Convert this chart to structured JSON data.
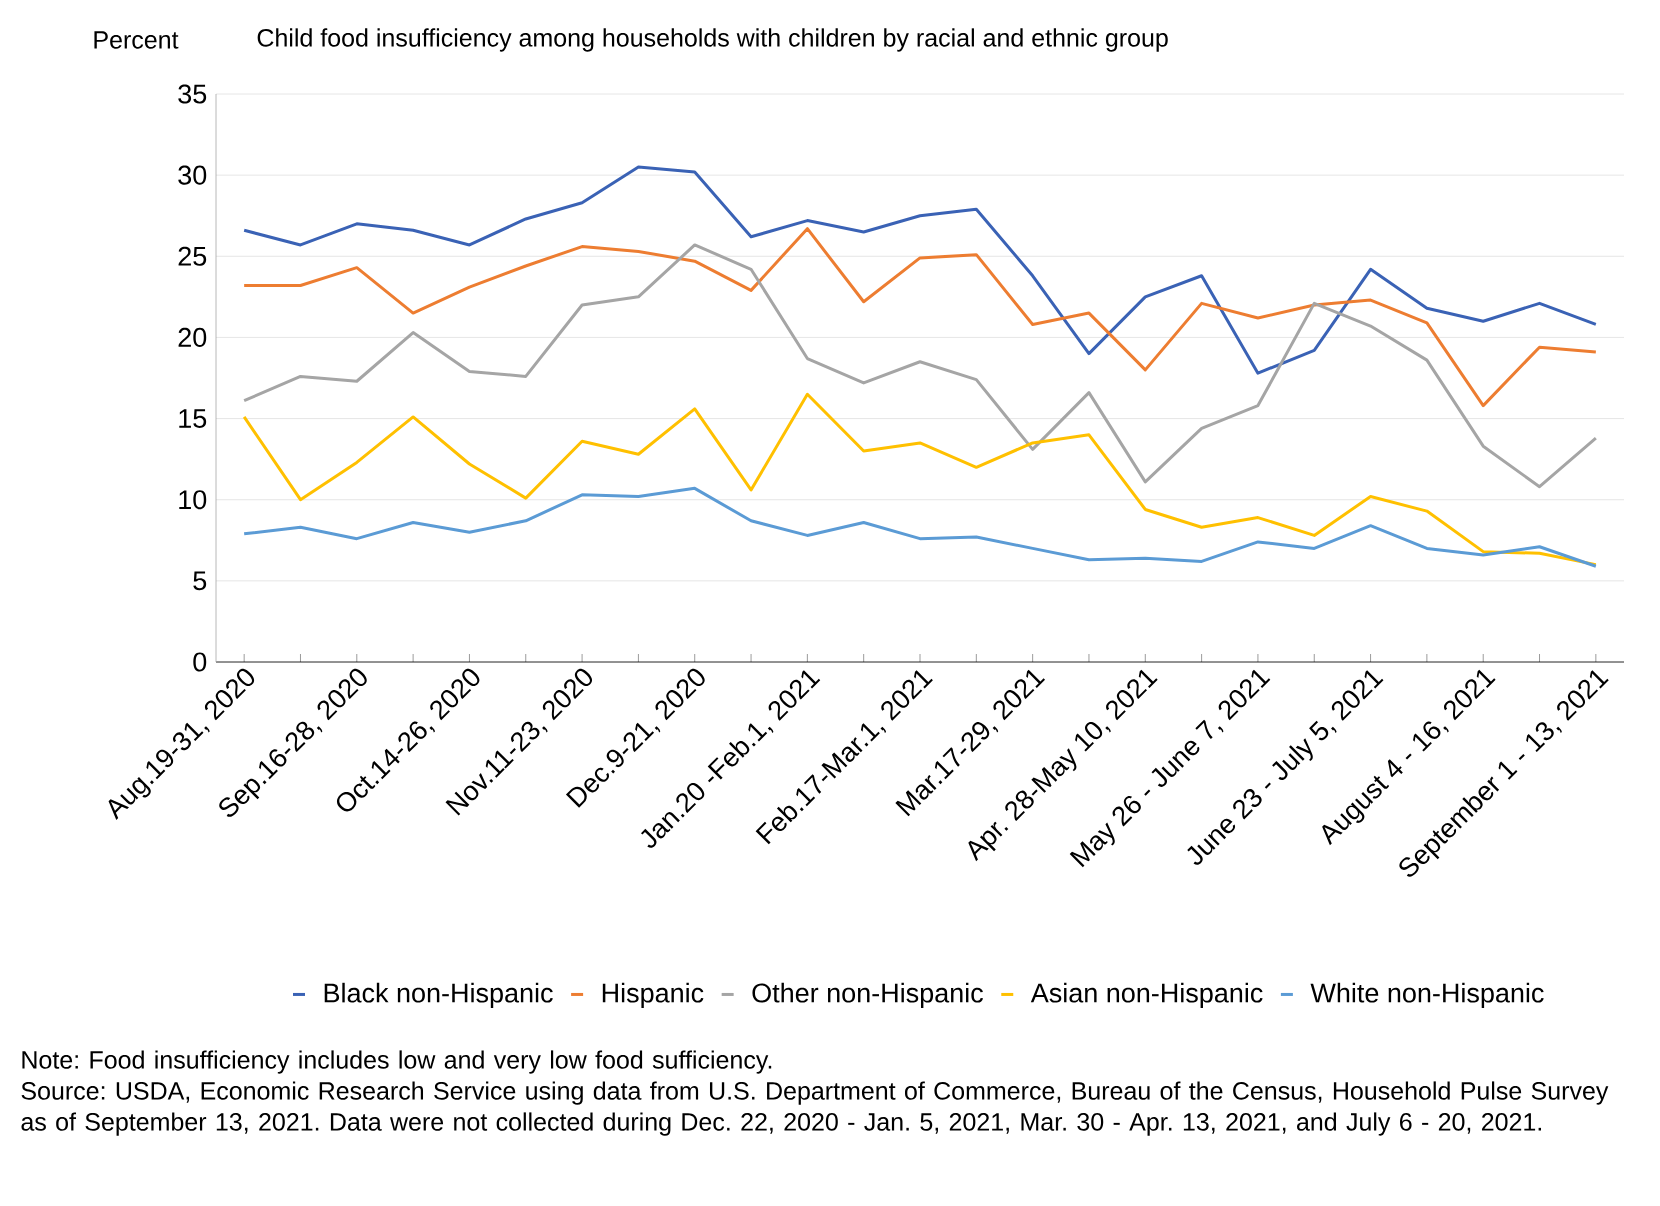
{
  "chart_data": {
    "type": "line",
    "title": "Child food insufficiency among households with children by racial and ethnic group",
    "ylabel": "Percent",
    "categories": [
      "Aug.19-31, 2020",
      null,
      "Sep.16-28, 2020",
      null,
      "Oct.14-26, 2020",
      null,
      "Nov.11-23, 2020",
      null,
      "Dec.9-21, 2020",
      null,
      "Jan.20 -Feb.1, 2021",
      null,
      "Feb.17-Mar.1, 2021",
      null,
      "Mar.17-29, 2021",
      null,
      "Apr. 28-May 10, 2021",
      null,
      "May 26 - June 7, 2021",
      null,
      "June 23 - July 5, 2021",
      null,
      "August 4 - 16, 2021",
      null,
      "September 1 - 13, 2021"
    ],
    "series": [
      {
        "name": "Black non-Hispanic",
        "color": "#3a62b5",
        "values": [
          26.6,
          25.7,
          27.0,
          26.6,
          25.7,
          27.3,
          28.3,
          30.5,
          30.2,
          26.2,
          27.2,
          26.5,
          27.5,
          27.9,
          23.8,
          19.0,
          22.5,
          23.8,
          17.8,
          19.2,
          24.2,
          21.8,
          21.0,
          22.1,
          20.8
        ]
      },
      {
        "name": "Hispanic",
        "color": "#ed7d31",
        "values": [
          23.2,
          23.2,
          24.3,
          21.5,
          23.1,
          24.4,
          25.6,
          25.3,
          24.7,
          22.9,
          26.7,
          22.2,
          24.9,
          25.1,
          20.8,
          21.5,
          18.0,
          22.1,
          21.2,
          22.0,
          22.3,
          20.9,
          15.8,
          19.4,
          19.1
        ]
      },
      {
        "name": "Other non-Hispanic",
        "color": "#a5a5a5",
        "values": [
          16.1,
          17.6,
          17.3,
          20.3,
          17.9,
          17.6,
          22.0,
          22.5,
          25.7,
          24.2,
          18.7,
          17.2,
          18.5,
          17.4,
          13.1,
          16.6,
          11.1,
          14.4,
          15.8,
          22.1,
          20.7,
          18.6,
          13.3,
          10.8,
          13.8
        ]
      },
      {
        "name": "Asian non-Hispanic",
        "color": "#ffc000",
        "values": [
          15.1,
          10.0,
          12.3,
          15.1,
          12.2,
          10.1,
          13.6,
          12.8,
          15.6,
          10.6,
          16.5,
          13.0,
          13.5,
          12.0,
          13.5,
          14.0,
          9.4,
          8.3,
          8.9,
          7.8,
          10.2,
          9.3,
          6.8,
          6.7,
          6.0
        ]
      },
      {
        "name": "White non-Hispanic",
        "color": "#5b9bd5",
        "values": [
          7.9,
          8.3,
          7.6,
          8.6,
          8.0,
          8.7,
          10.3,
          10.2,
          10.7,
          8.7,
          7.8,
          8.6,
          7.6,
          7.7,
          7.0,
          6.3,
          6.4,
          6.2,
          7.4,
          7.0,
          8.4,
          7.0,
          6.6,
          7.1,
          5.9
        ]
      }
    ],
    "ylim": [
      0,
      35
    ],
    "yticks": [
      0,
      5,
      10,
      15,
      20,
      25,
      30,
      35
    ],
    "grid": "y",
    "legend": "bottom",
    "marker": "none",
    "line_style": "solid",
    "annotations": [
      "Note: Food insufficiency includes low and very low food sufficiency.",
      "Source: USDA, Economic Research Service using data from U.S. Department of Commerce, Bureau of the Census, Household Pulse Survey as of September 13, 2021. Data were not collected during Dec. 22, 2020 - Jan. 5, 2021, Mar. 30 - Apr. 13, 2021, and July 6 - 20, 2021."
    ]
  }
}
